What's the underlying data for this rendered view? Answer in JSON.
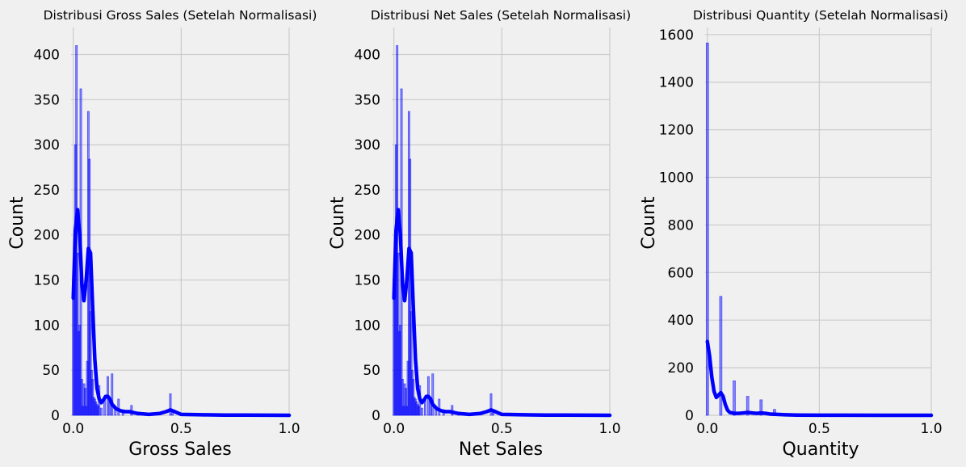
{
  "figure": {
    "background": "#f0f0f0",
    "plot_background": "#f0f0f0",
    "grid_color": "#cbcbcb",
    "bar_color": "#0000ff",
    "kde_color": "#0000ff"
  },
  "chart_data": [
    {
      "type": "bar",
      "title": "Distribusi Gross Sales (Setelah Normalisasi)",
      "xlabel": "Gross Sales",
      "ylabel": "Count",
      "xlim": [
        -0.01,
        1.0
      ],
      "ylim": [
        0,
        430
      ],
      "xticks": [
        0.0,
        0.5,
        1.0
      ],
      "xtick_labels": [
        "0.0",
        "0.5",
        "1.0"
      ],
      "yticks": [
        0,
        50,
        100,
        150,
        200,
        250,
        300,
        350,
        400
      ],
      "ytick_labels": [
        "0",
        "50",
        "100",
        "150",
        "200",
        "250",
        "300",
        "350",
        "400"
      ],
      "grid": true,
      "bars": [
        {
          "x": 0.0,
          "y": 130
        },
        {
          "x": 0.005,
          "y": 180
        },
        {
          "x": 0.01,
          "y": 300
        },
        {
          "x": 0.015,
          "y": 410
        },
        {
          "x": 0.02,
          "y": 180
        },
        {
          "x": 0.025,
          "y": 93
        },
        {
          "x": 0.03,
          "y": 100
        },
        {
          "x": 0.035,
          "y": 362
        },
        {
          "x": 0.04,
          "y": 40
        },
        {
          "x": 0.045,
          "y": 10
        },
        {
          "x": 0.05,
          "y": 35
        },
        {
          "x": 0.055,
          "y": 30
        },
        {
          "x": 0.06,
          "y": 10
        },
        {
          "x": 0.065,
          "y": 60
        },
        {
          "x": 0.07,
          "y": 337
        },
        {
          "x": 0.075,
          "y": 284
        },
        {
          "x": 0.08,
          "y": 115
        },
        {
          "x": 0.085,
          "y": 50
        },
        {
          "x": 0.09,
          "y": 40
        },
        {
          "x": 0.095,
          "y": 20
        },
        {
          "x": 0.1,
          "y": 18
        },
        {
          "x": 0.105,
          "y": 15
        },
        {
          "x": 0.11,
          "y": 12
        },
        {
          "x": 0.115,
          "y": 10
        },
        {
          "x": 0.12,
          "y": 33
        },
        {
          "x": 0.13,
          "y": 8
        },
        {
          "x": 0.145,
          "y": 20
        },
        {
          "x": 0.16,
          "y": 43
        },
        {
          "x": 0.17,
          "y": 15
        },
        {
          "x": 0.18,
          "y": 46
        },
        {
          "x": 0.195,
          "y": 8
        },
        {
          "x": 0.21,
          "y": 18
        },
        {
          "x": 0.23,
          "y": 5
        },
        {
          "x": 0.27,
          "y": 11
        },
        {
          "x": 0.3,
          "y": 3
        },
        {
          "x": 0.45,
          "y": 24
        },
        {
          "x": 0.46,
          "y": 5
        },
        {
          "x": 0.6,
          "y": 2
        }
      ],
      "kde": [
        [
          0.0,
          130
        ],
        [
          0.01,
          205
        ],
        [
          0.02,
          228
        ],
        [
          0.03,
          200
        ],
        [
          0.04,
          145
        ],
        [
          0.05,
          127
        ],
        [
          0.06,
          150
        ],
        [
          0.07,
          185
        ],
        [
          0.08,
          180
        ],
        [
          0.09,
          120
        ],
        [
          0.1,
          62
        ],
        [
          0.11,
          30
        ],
        [
          0.12,
          18
        ],
        [
          0.13,
          14
        ],
        [
          0.14,
          17
        ],
        [
          0.15,
          21
        ],
        [
          0.16,
          21
        ],
        [
          0.17,
          18
        ],
        [
          0.18,
          12
        ],
        [
          0.2,
          7
        ],
        [
          0.22,
          5
        ],
        [
          0.24,
          4
        ],
        [
          0.26,
          4
        ],
        [
          0.28,
          3
        ],
        [
          0.3,
          2
        ],
        [
          0.35,
          1
        ],
        [
          0.4,
          2
        ],
        [
          0.43,
          4
        ],
        [
          0.45,
          6
        ],
        [
          0.47,
          4
        ],
        [
          0.5,
          1
        ],
        [
          0.6,
          0.5
        ],
        [
          0.7,
          0.3
        ],
        [
          0.8,
          0.2
        ],
        [
          0.9,
          0.1
        ],
        [
          1.0,
          0
        ]
      ]
    },
    {
      "type": "bar",
      "title": "Distribusi Net Sales (Setelah Normalisasi)",
      "xlabel": "Net Sales",
      "ylabel": "Count",
      "xlim": [
        -0.01,
        1.0
      ],
      "ylim": [
        0,
        430
      ],
      "xticks": [
        0.0,
        0.5,
        1.0
      ],
      "xtick_labels": [
        "0.0",
        "0.5",
        "1.0"
      ],
      "yticks": [
        0,
        50,
        100,
        150,
        200,
        250,
        300,
        350,
        400
      ],
      "ytick_labels": [
        "0",
        "50",
        "100",
        "150",
        "200",
        "250",
        "300",
        "350",
        "400"
      ],
      "grid": true,
      "bars": [
        {
          "x": 0.0,
          "y": 130
        },
        {
          "x": 0.005,
          "y": 180
        },
        {
          "x": 0.01,
          "y": 300
        },
        {
          "x": 0.015,
          "y": 410
        },
        {
          "x": 0.02,
          "y": 180
        },
        {
          "x": 0.025,
          "y": 93
        },
        {
          "x": 0.03,
          "y": 100
        },
        {
          "x": 0.035,
          "y": 362
        },
        {
          "x": 0.04,
          "y": 40
        },
        {
          "x": 0.045,
          "y": 10
        },
        {
          "x": 0.05,
          "y": 35
        },
        {
          "x": 0.055,
          "y": 30
        },
        {
          "x": 0.06,
          "y": 10
        },
        {
          "x": 0.065,
          "y": 60
        },
        {
          "x": 0.07,
          "y": 337
        },
        {
          "x": 0.075,
          "y": 284
        },
        {
          "x": 0.08,
          "y": 115
        },
        {
          "x": 0.085,
          "y": 50
        },
        {
          "x": 0.09,
          "y": 40
        },
        {
          "x": 0.095,
          "y": 20
        },
        {
          "x": 0.1,
          "y": 18
        },
        {
          "x": 0.105,
          "y": 15
        },
        {
          "x": 0.11,
          "y": 12
        },
        {
          "x": 0.115,
          "y": 10
        },
        {
          "x": 0.12,
          "y": 33
        },
        {
          "x": 0.13,
          "y": 8
        },
        {
          "x": 0.145,
          "y": 20
        },
        {
          "x": 0.16,
          "y": 43
        },
        {
          "x": 0.17,
          "y": 15
        },
        {
          "x": 0.18,
          "y": 46
        },
        {
          "x": 0.195,
          "y": 8
        },
        {
          "x": 0.21,
          "y": 18
        },
        {
          "x": 0.23,
          "y": 5
        },
        {
          "x": 0.27,
          "y": 11
        },
        {
          "x": 0.3,
          "y": 3
        },
        {
          "x": 0.45,
          "y": 24
        },
        {
          "x": 0.46,
          "y": 5
        },
        {
          "x": 0.6,
          "y": 2
        }
      ],
      "kde": [
        [
          0.0,
          130
        ],
        [
          0.01,
          205
        ],
        [
          0.02,
          228
        ],
        [
          0.03,
          200
        ],
        [
          0.04,
          145
        ],
        [
          0.05,
          127
        ],
        [
          0.06,
          150
        ],
        [
          0.07,
          185
        ],
        [
          0.08,
          180
        ],
        [
          0.09,
          120
        ],
        [
          0.1,
          62
        ],
        [
          0.11,
          30
        ],
        [
          0.12,
          18
        ],
        [
          0.13,
          14
        ],
        [
          0.14,
          17
        ],
        [
          0.15,
          21
        ],
        [
          0.16,
          21
        ],
        [
          0.17,
          18
        ],
        [
          0.18,
          12
        ],
        [
          0.2,
          7
        ],
        [
          0.22,
          5
        ],
        [
          0.24,
          4
        ],
        [
          0.26,
          4
        ],
        [
          0.28,
          3
        ],
        [
          0.3,
          2
        ],
        [
          0.35,
          1
        ],
        [
          0.4,
          2
        ],
        [
          0.43,
          4
        ],
        [
          0.45,
          6
        ],
        [
          0.47,
          4
        ],
        [
          0.5,
          1
        ],
        [
          0.6,
          0.5
        ],
        [
          0.7,
          0.3
        ],
        [
          0.8,
          0.2
        ],
        [
          0.9,
          0.1
        ],
        [
          1.0,
          0
        ]
      ]
    },
    {
      "type": "bar",
      "title": "Distribusi Quantity (Setelah Normalisasi)",
      "xlabel": "Quantity",
      "ylabel": "Count",
      "xlim": [
        -0.01,
        1.0
      ],
      "ylim": [
        0,
        1630
      ],
      "xticks": [
        0.0,
        0.5,
        1.0
      ],
      "xtick_labels": [
        "0.0",
        "0.5",
        "1.0"
      ],
      "yticks": [
        0,
        200,
        400,
        600,
        800,
        1000,
        1200,
        1400,
        1600
      ],
      "ytick_labels": [
        "0",
        "200",
        "400",
        "600",
        "800",
        "1000",
        "1200",
        "1400",
        "1600"
      ],
      "grid": true,
      "bars": [
        {
          "x": 0.0,
          "y": 1565
        },
        {
          "x": 0.06,
          "y": 500
        },
        {
          "x": 0.12,
          "y": 145
        },
        {
          "x": 0.18,
          "y": 80
        },
        {
          "x": 0.24,
          "y": 65
        },
        {
          "x": 0.3,
          "y": 25
        },
        {
          "x": 0.36,
          "y": 8
        },
        {
          "x": 0.48,
          "y": 3
        },
        {
          "x": 0.6,
          "y": 2
        }
      ],
      "kde": [
        [
          0.0,
          310
        ],
        [
          0.01,
          250
        ],
        [
          0.02,
          160
        ],
        [
          0.03,
          100
        ],
        [
          0.04,
          75
        ],
        [
          0.05,
          85
        ],
        [
          0.06,
          95
        ],
        [
          0.07,
          80
        ],
        [
          0.08,
          45
        ],
        [
          0.09,
          22
        ],
        [
          0.1,
          12
        ],
        [
          0.12,
          8
        ],
        [
          0.14,
          8
        ],
        [
          0.16,
          10
        ],
        [
          0.18,
          12
        ],
        [
          0.2,
          10
        ],
        [
          0.22,
          8
        ],
        [
          0.24,
          10
        ],
        [
          0.26,
          8
        ],
        [
          0.28,
          5
        ],
        [
          0.3,
          4
        ],
        [
          0.35,
          2
        ],
        [
          0.4,
          1
        ],
        [
          0.5,
          0.5
        ],
        [
          0.6,
          0.3
        ],
        [
          0.8,
          0.1
        ],
        [
          1.0,
          0
        ]
      ]
    }
  ]
}
